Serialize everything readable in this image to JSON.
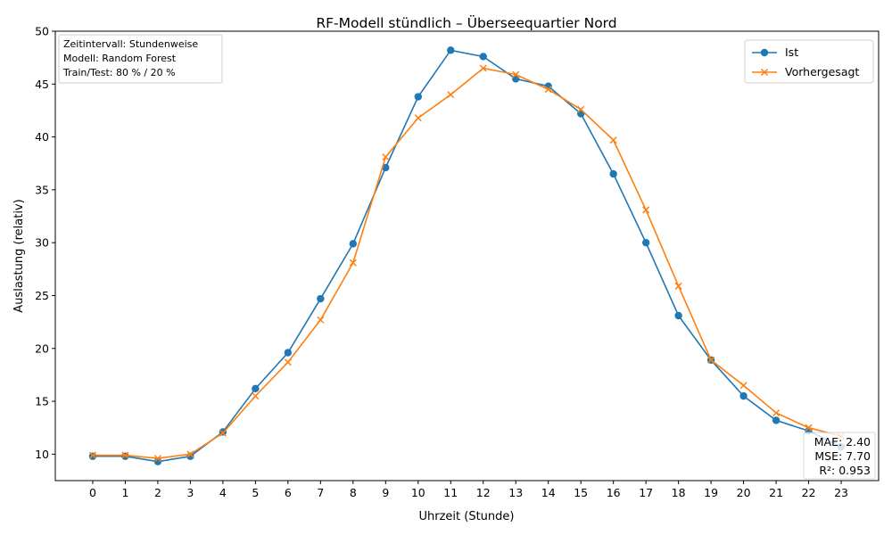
{
  "chart_data": {
    "type": "line",
    "title": "RF-Modell stündlich – Überseequartier Nord",
    "xlabel": "Uhrzeit (Stunde)",
    "ylabel": "Auslastung (relativ)",
    "x": [
      0,
      1,
      2,
      3,
      4,
      5,
      6,
      7,
      8,
      9,
      10,
      11,
      12,
      13,
      14,
      15,
      16,
      17,
      18,
      19,
      20,
      21,
      22,
      23
    ],
    "xlim": [
      -1.15,
      24.15
    ],
    "ylim": [
      7.5,
      50
    ],
    "yticks": [
      10,
      15,
      20,
      25,
      30,
      35,
      40,
      45,
      50
    ],
    "grid": false,
    "legend_position": "top-right",
    "series": [
      {
        "name": "Ist",
        "color": "#1f77b4",
        "marker": "circle",
        "values": [
          9.8,
          9.8,
          9.3,
          9.8,
          12.1,
          16.2,
          19.6,
          24.7,
          29.9,
          37.1,
          43.8,
          48.2,
          47.6,
          45.5,
          44.8,
          42.2,
          36.5,
          30.0,
          23.1,
          18.9,
          15.5,
          13.2,
          12.2,
          10.7
        ]
      },
      {
        "name": "Vorhergesagt",
        "color": "#ff7f0e",
        "marker": "x",
        "values": [
          9.9,
          9.9,
          9.6,
          10.0,
          12.0,
          15.5,
          18.7,
          22.7,
          28.1,
          38.1,
          41.8,
          44.0,
          46.5,
          45.9,
          44.5,
          42.6,
          39.7,
          33.1,
          25.9,
          18.9,
          16.5,
          13.9,
          12.5,
          11.7
        ]
      }
    ],
    "info_box": {
      "position": "top-left",
      "lines": [
        "Zeitintervall: Stundenweise",
        "Modell: Random Forest",
        "Train/Test: 80 % / 20 %"
      ]
    },
    "metrics_box": {
      "position": "bottom-right",
      "lines": [
        "MAE: 2.40",
        "MSE: 7.70",
        "R²: 0.953"
      ]
    }
  }
}
